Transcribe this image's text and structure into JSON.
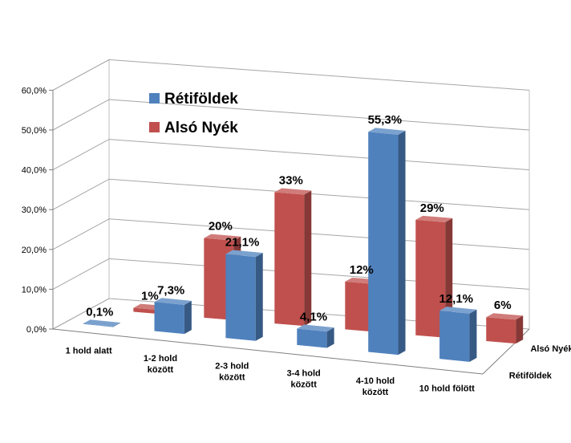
{
  "chart_data": {
    "type": "bar",
    "categories": [
      "1 hold alatt",
      "1-2 hold között",
      "2-3 hold között",
      "3-4 hold között",
      "4-10 hold között",
      "10 hold fölött"
    ],
    "series": [
      {
        "name": "Rétiföldek",
        "values": [
          0.1,
          7.3,
          21.1,
          4.1,
          55.3,
          12.1
        ],
        "labels": [
          "0,1%",
          "7,3%",
          "21,1%",
          "4,1%",
          "55,3%",
          "12,1%"
        ],
        "color": "#4f81bd"
      },
      {
        "name": "Alsó Nyék",
        "values": [
          1,
          20,
          33,
          12,
          29,
          6
        ],
        "labels": [
          "1%",
          "20%",
          "33%",
          "12%",
          "29%",
          "6%"
        ],
        "color": "#c0504d"
      }
    ],
    "yticks": [
      "0,0%",
      "10,0%",
      "20,0%",
      "30,0%",
      "40,0%",
      "50,0%",
      "60,0%"
    ],
    "ylim": [
      0,
      60
    ],
    "legend_position": "top-left",
    "grid": true
  }
}
